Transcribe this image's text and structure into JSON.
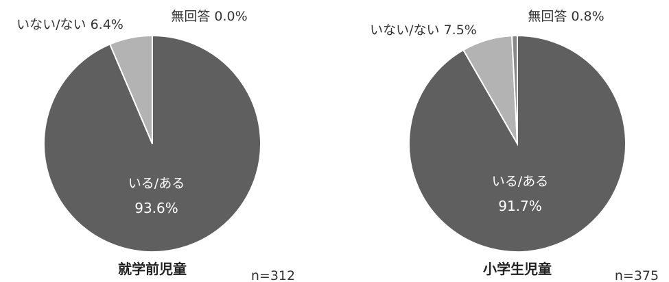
{
  "chart_data": [
    {
      "type": "pie",
      "title": "就学前児童",
      "n_label": "n=312",
      "slices": [
        {
          "name": "いる/ある",
          "value": 93.6,
          "display": "93.6%",
          "color": "#5f5f5f"
        },
        {
          "name": "いない/ない",
          "value": 6.4,
          "display": "6.4%",
          "color": "#b3b3b3"
        },
        {
          "name": "無回答",
          "value": 0.0,
          "display": "0.0%",
          "color": "#888888"
        }
      ]
    },
    {
      "type": "pie",
      "title": "小学生児童",
      "n_label": "n=375",
      "slices": [
        {
          "name": "いる/ある",
          "value": 91.7,
          "display": "91.7%",
          "color": "#5f5f5f"
        },
        {
          "name": "いない/ない",
          "value": 7.5,
          "display": "7.5%",
          "color": "#b3b3b3"
        },
        {
          "name": "無回答",
          "value": 0.8,
          "display": "0.8%",
          "color": "#888888"
        }
      ]
    }
  ]
}
